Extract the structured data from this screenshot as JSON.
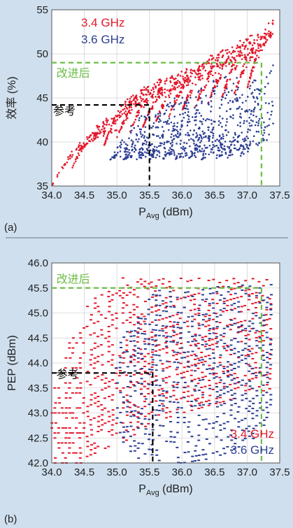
{
  "colors": {
    "background": "#cfdfee",
    "plot_bg": "#ffffff",
    "series_34": "#e4182b",
    "series_36": "#2c3e93",
    "dashed_green": "#6cbd45",
    "dashed_black": "#000000",
    "divider": "#6a7a8a"
  },
  "chart_data": [
    {
      "panel_label": "(a)",
      "type": "scatter",
      "xlabel_main": "P",
      "xlabel_sub": "Avg",
      "xlabel_unit": " (dBm)",
      "ylabel": "效率 (%)",
      "xlim": [
        34.0,
        37.5
      ],
      "ylim": [
        35,
        55
      ],
      "xticks": [
        "34.0",
        "34.5",
        "35.0",
        "35.5",
        "36.0",
        "36.5",
        "37.0",
        "37.5"
      ],
      "yticks": [
        "35",
        "40",
        "45",
        "50",
        "55"
      ],
      "grid": true,
      "legend": [
        {
          "name": "3.4 GHz",
          "color": "#e4182b"
        },
        {
          "name": "3.6 GHz",
          "color": "#2c3e93"
        }
      ],
      "legend_position": "top-left",
      "series": [
        {
          "name": "3.4 GHz",
          "fronts": [
            [
              34.0,
              35.0,
              41.5
            ],
            [
              34.3,
              35.0,
              43.0
            ],
            [
              34.8,
              35.3,
              45.5
            ],
            [
              35.0,
              35.5,
              46.5
            ],
            [
              35.2,
              35.7,
              47.2
            ],
            [
              35.4,
              35.9,
              47.8
            ],
            [
              35.6,
              36.1,
              48.5
            ],
            [
              35.8,
              36.3,
              49.2
            ],
            [
              36.0,
              36.5,
              50.0
            ],
            [
              36.2,
              36.7,
              50.8
            ],
            [
              36.4,
              36.9,
              51.5
            ],
            [
              36.6,
              37.1,
              52.3
            ],
            [
              36.8,
              37.3,
              53.0
            ],
            [
              37.0,
              37.4,
              54.0
            ]
          ],
          "envelope_low": [
            [
              34.0,
              35.0
            ],
            [
              34.5,
              38.0
            ],
            [
              35.0,
              40.5
            ],
            [
              35.5,
              42.0
            ],
            [
              36.0,
              43.5
            ],
            [
              36.5,
              44.5
            ],
            [
              37.0,
              46.0
            ],
            [
              37.4,
              47.5
            ]
          ]
        },
        {
          "name": "3.6 GHz",
          "fronts": [
            [
              34.9,
              35.5,
              43.5
            ],
            [
              35.1,
              35.7,
              44.2
            ],
            [
              35.3,
              35.9,
              45.0
            ],
            [
              35.5,
              36.1,
              45.8
            ],
            [
              35.7,
              36.3,
              46.5
            ],
            [
              35.9,
              36.5,
              47.0
            ],
            [
              36.1,
              36.7,
              47.5
            ],
            [
              36.3,
              36.9,
              48.0
            ],
            [
              36.5,
              37.1,
              48.5
            ],
            [
              36.7,
              37.3,
              49.0
            ],
            [
              36.9,
              37.4,
              49.2
            ]
          ],
          "envelope_low": [
            [
              34.9,
              38.0
            ],
            [
              35.5,
              38.0
            ],
            [
              36.0,
              38.0
            ],
            [
              36.5,
              38.0
            ],
            [
              37.0,
              38.5
            ],
            [
              37.4,
              39.5
            ]
          ]
        }
      ],
      "annotations": [
        {
          "label": "参考",
          "x": 35.5,
          "y": 44.2,
          "color": "black",
          "text_x": 34.0,
          "text_y": 43.1
        },
        {
          "label": "改进后",
          "x": 37.22,
          "y": 49.0,
          "color": "green",
          "text_x": 34.05,
          "text_y": 47.4
        }
      ]
    },
    {
      "panel_label": "(b)",
      "type": "scatter",
      "xlabel_main": "P",
      "xlabel_sub": "Avg",
      "xlabel_unit": " (dBm)",
      "ylabel": "PEP (dBm)",
      "xlim": [
        34.0,
        37.5
      ],
      "ylim": [
        42.0,
        46.0
      ],
      "xticks": [
        "34.0",
        "34.5",
        "35.0",
        "35.5",
        "36.0",
        "36.5",
        "37.0",
        "37.5"
      ],
      "yticks": [
        "42.0",
        "42.5",
        "43.0",
        "43.5",
        "44.0",
        "44.5",
        "45.0",
        "45.5",
        "46.0"
      ],
      "grid": true,
      "legend": [
        {
          "name": "3.4 GHz",
          "color": "#e4182b"
        },
        {
          "name": "3.6 GHz",
          "color": "#2c3e93"
        }
      ],
      "legend_position": "bottom-right",
      "series": [
        {
          "name": "3.4 GHz",
          "x_range": [
            34.0,
            37.4
          ],
          "y_top": [
            [
              34.0,
              43.5
            ],
            [
              34.3,
              44.5
            ],
            [
              34.6,
              45.3
            ],
            [
              34.9,
              45.5
            ],
            [
              35.1,
              45.7
            ],
            [
              37.4,
              45.7
            ]
          ],
          "y_bottom": [
            [
              34.0,
              42.0
            ],
            [
              34.5,
              42.0
            ],
            [
              35.0,
              42.3
            ],
            [
              35.5,
              42.8
            ],
            [
              36.0,
              43.0
            ],
            [
              37.4,
              43.5
            ]
          ]
        },
        {
          "name": "3.6 GHz",
          "x_range": [
            35.0,
            37.4
          ],
          "y_top": [
            [
              35.0,
              44.3
            ],
            [
              35.3,
              45.0
            ],
            [
              35.6,
              45.5
            ],
            [
              37.4,
              45.6
            ]
          ],
          "y_bottom": [
            [
              35.0,
              42.6
            ],
            [
              35.3,
              42.1
            ],
            [
              36.0,
              42.0
            ],
            [
              36.5,
              42.1
            ],
            [
              37.0,
              42.4
            ],
            [
              37.4,
              42.8
            ]
          ]
        }
      ],
      "annotations": [
        {
          "label": "参考",
          "x": 35.55,
          "y": 43.8,
          "color": "black",
          "text_x": 34.05,
          "text_y": 43.7
        },
        {
          "label": "改进后",
          "x": 37.22,
          "y": 45.5,
          "color": "green",
          "text_x": 34.05,
          "text_y": 45.6
        }
      ]
    }
  ]
}
